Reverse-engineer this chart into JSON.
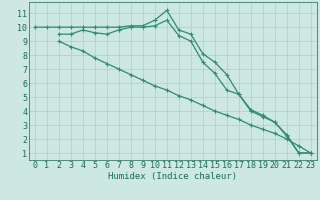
{
  "series": [
    {
      "x": [
        0,
        1,
        2,
        3,
        4,
        5,
        6,
        7,
        8,
        9,
        10,
        11,
        12,
        13,
        14,
        15,
        16,
        17,
        18,
        19,
        20,
        21,
        22,
        23
      ],
      "y": [
        10,
        10,
        10,
        10,
        10,
        10,
        10,
        10,
        10.1,
        10.1,
        10.5,
        11.2,
        9.8,
        9.5,
        8.1,
        7.5,
        6.6,
        5.2,
        4.0,
        3.6,
        3.2,
        2.2,
        1.0,
        1.0
      ],
      "color": "#2e8b74",
      "linewidth": 0.9,
      "marker": "+",
      "markersize": 3.5
    },
    {
      "x": [
        2,
        3,
        4,
        5,
        6,
        7,
        8,
        9,
        10,
        11,
        12,
        13,
        14,
        15,
        16,
        17,
        18,
        19,
        20,
        21,
        22,
        23
      ],
      "y": [
        9.5,
        9.5,
        9.8,
        9.6,
        9.5,
        9.8,
        10.0,
        10.0,
        10.1,
        10.5,
        9.4,
        9.0,
        7.5,
        6.7,
        5.5,
        5.2,
        4.1,
        3.7,
        3.2,
        2.3,
        1.0,
        1.0
      ],
      "color": "#2e8b74",
      "linewidth": 0.9,
      "marker": "+",
      "markersize": 3.5
    },
    {
      "x": [
        2,
        3,
        4,
        5,
        6,
        7,
        8,
        9,
        10,
        11,
        12,
        13,
        14,
        15,
        16,
        17,
        18,
        19,
        20,
        21,
        22,
        23
      ],
      "y": [
        9.0,
        8.6,
        8.3,
        7.8,
        7.4,
        7.0,
        6.6,
        6.2,
        5.8,
        5.5,
        5.1,
        4.8,
        4.4,
        4.0,
        3.7,
        3.4,
        3.0,
        2.7,
        2.4,
        2.0,
        1.5,
        1.0
      ],
      "color": "#2e8b74",
      "linewidth": 0.9,
      "marker": "+",
      "markersize": 3.5
    }
  ],
  "xlim": [
    -0.5,
    23.5
  ],
  "ylim": [
    0.5,
    11.8
  ],
  "xticks": [
    0,
    1,
    2,
    3,
    4,
    5,
    6,
    7,
    8,
    9,
    10,
    11,
    12,
    13,
    14,
    15,
    16,
    17,
    18,
    19,
    20,
    21,
    22,
    23
  ],
  "yticks": [
    1,
    2,
    3,
    4,
    5,
    6,
    7,
    8,
    9,
    10,
    11
  ],
  "xlabel": "Humidex (Indice chaleur)",
  "background_color": "#cce8e0",
  "grid_color": "#b0ccc8",
  "tick_color": "#1a6b5a",
  "label_color": "#1a6b5a",
  "xlabel_fontsize": 6.5,
  "tick_fontsize": 6.0
}
